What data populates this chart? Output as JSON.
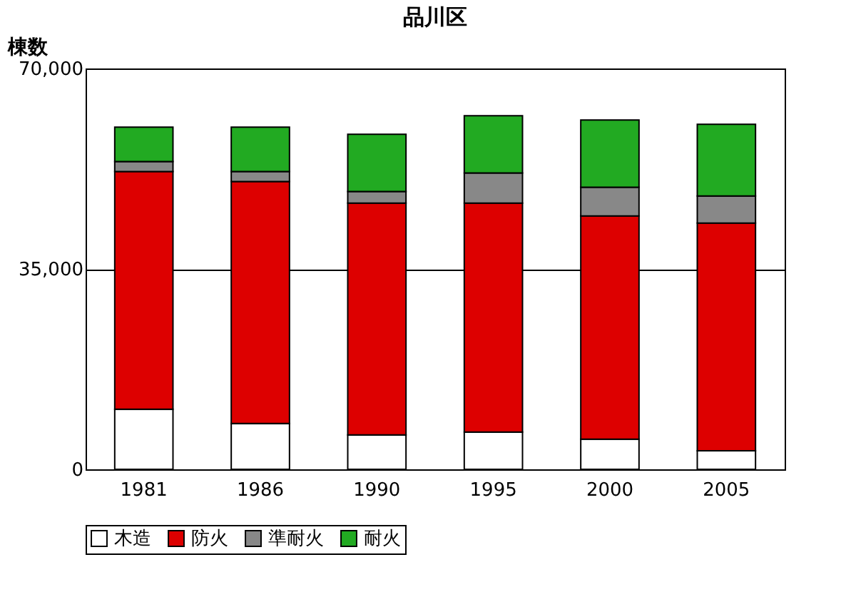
{
  "chart_data": {
    "type": "bar",
    "title": "品川区",
    "ylabel": "棟数",
    "stacked": true,
    "categories": [
      "1981",
      "1986",
      "1990",
      "1995",
      "2000",
      "2005"
    ],
    "series": [
      {
        "name": "木造",
        "color": "#ffffff",
        "values": [
          10500,
          8000,
          6000,
          6500,
          5250,
          3250
        ]
      },
      {
        "name": "防火",
        "color": "#dd0000",
        "values": [
          41500,
          42250,
          40500,
          40000,
          39000,
          39750
        ]
      },
      {
        "name": "準耐火",
        "color": "#888888",
        "values": [
          1750,
          1750,
          2000,
          5250,
          5000,
          4750
        ]
      },
      {
        "name": "耐火",
        "color": "#22aa22",
        "values": [
          6000,
          7750,
          10000,
          10000,
          11750,
          12500
        ]
      }
    ],
    "ylim": [
      0,
      70000
    ],
    "yticks": [
      0,
      {
        "value": 35000,
        "label": "35,000"
      },
      {
        "value": 70000,
        "label": "70,000"
      }
    ],
    "grid": "y",
    "legend": "bottom"
  }
}
